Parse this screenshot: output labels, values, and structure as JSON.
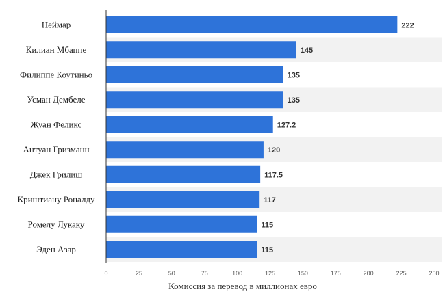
{
  "chart_data": {
    "type": "bar",
    "orientation": "horizontal",
    "categories": [
      "Неймар",
      "Килиан Мбаппе",
      "Филиппе Коутиньо",
      "Усман Дембеле",
      "Жуан Феликс",
      "Антуан Гризманн",
      "Джек Грилиш",
      "Криштиану Роналду",
      "Ромелу Лукаку",
      "Эден Азар"
    ],
    "values": [
      222,
      145,
      135,
      135,
      127.2,
      120,
      117.5,
      117,
      115,
      115
    ],
    "value_labels": [
      "222",
      "145",
      "135",
      "135",
      "127.2",
      "120",
      "117.5",
      "117",
      "115",
      "115"
    ],
    "title": "",
    "xlabel": "Комиссия за перевод в миллионах евро",
    "ylabel": "",
    "xlim": [
      0,
      250
    ],
    "xticks": [
      0,
      25,
      50,
      75,
      100,
      125,
      150,
      175,
      200,
      225,
      250
    ],
    "grid": "alternating-row-bands",
    "legend": "none"
  },
  "colors": {
    "bar": "#2e73d9",
    "band": "#f2f2f2",
    "axis": "#333333"
  }
}
